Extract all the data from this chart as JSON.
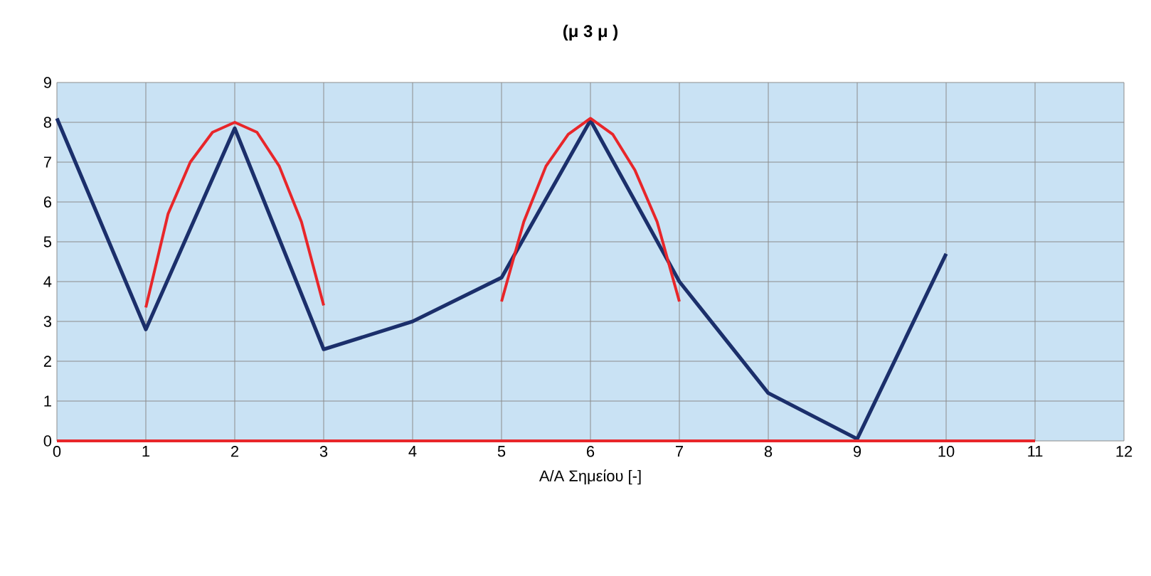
{
  "chart_data": {
    "type": "line",
    "title": "(μ 3 μ )",
    "xlabel": "Α/Α Σημείου [-]",
    "xlim": [
      0,
      12
    ],
    "xticks": [
      0,
      1,
      2,
      3,
      4,
      5,
      6,
      7,
      8,
      9,
      10,
      11,
      12
    ],
    "ylim": [
      0,
      9
    ],
    "yticks": [
      0,
      1,
      2,
      3,
      4,
      5,
      6,
      7,
      8,
      9
    ],
    "grid": true,
    "marker": "none",
    "line_style": "solid",
    "series": [
      {
        "color": "#1b2f6b",
        "x": [
          0,
          1,
          2,
          3,
          4,
          5,
          6,
          7,
          8,
          9,
          10
        ],
        "values": [
          8.1,
          2.8,
          7.85,
          2.3,
          3.0,
          4.1,
          8.05,
          4.0,
          1.2,
          0.05,
          4.7
        ]
      },
      {
        "color": "#e8262a",
        "x": [
          1,
          1.25,
          1.5,
          1.75,
          2,
          2.25,
          2.5,
          2.75,
          3
        ],
        "values": [
          3.35,
          5.7,
          7.0,
          7.75,
          8.0,
          7.75,
          6.9,
          5.5,
          3.4
        ]
      },
      {
        "color": "#e8262a",
        "x": [
          5,
          5.25,
          5.5,
          5.75,
          6,
          6.25,
          6.5,
          6.75,
          7
        ],
        "values": [
          3.5,
          5.5,
          6.9,
          7.7,
          8.1,
          7.7,
          6.8,
          5.5,
          3.5
        ]
      },
      {
        "color": "#e8262a",
        "x": [
          0,
          11
        ],
        "values": [
          0,
          0
        ]
      }
    ]
  }
}
